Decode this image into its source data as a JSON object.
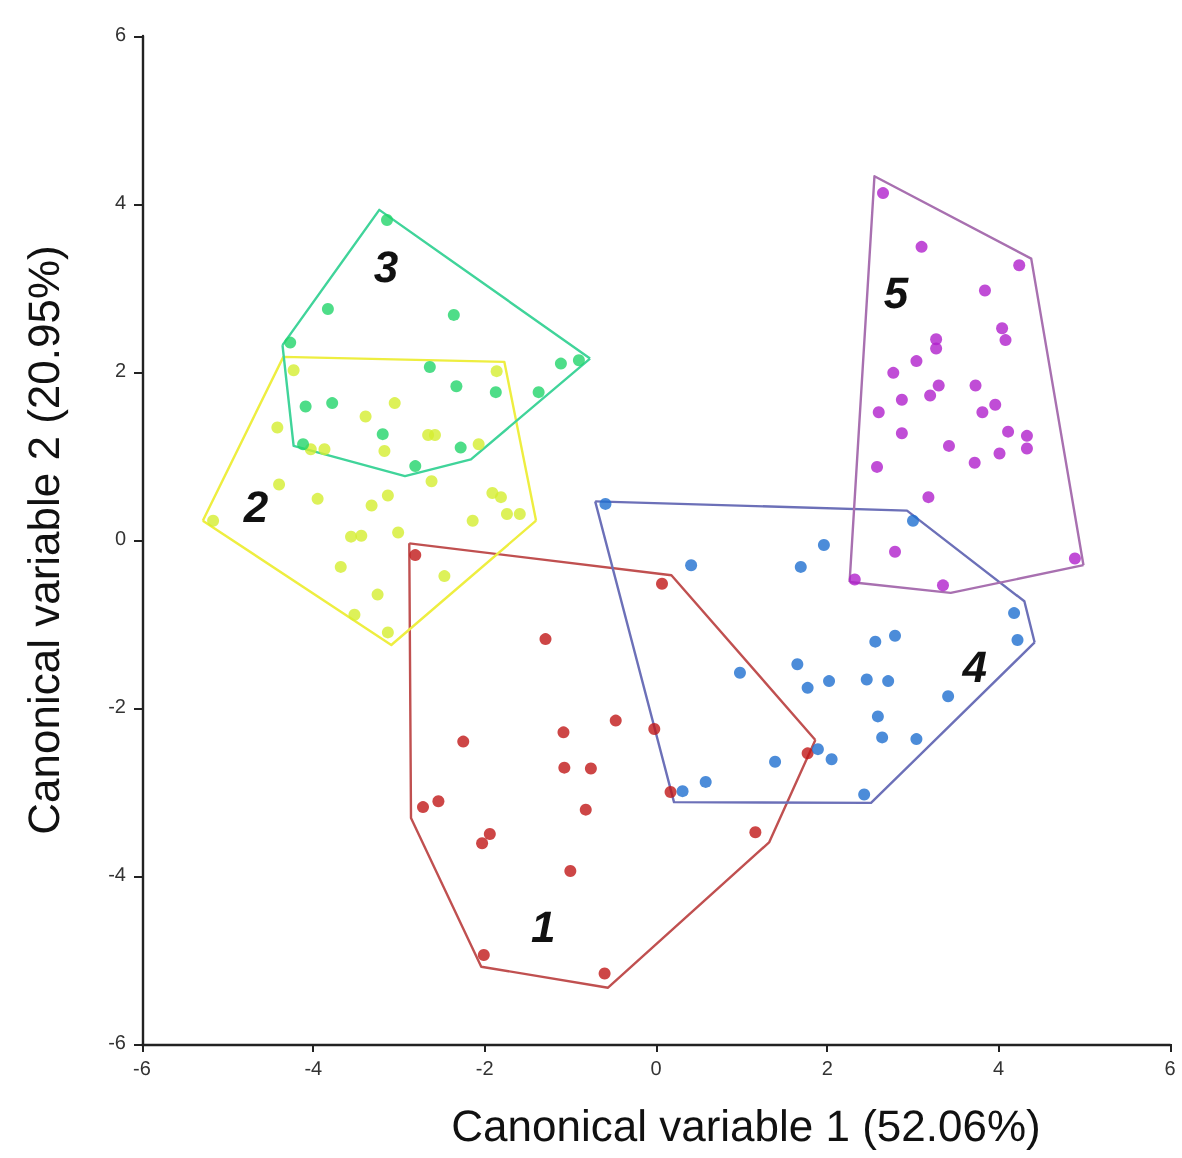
{
  "chart_data": {
    "type": "scatter",
    "xlabel": "Canonical variable 1 (52.06%)",
    "ylabel": "Canonical variable 2 (20.95%)",
    "xlim": [
      -6,
      6
    ],
    "ylim": [
      -6,
      6
    ],
    "xticks": [
      -6,
      -4,
      -2,
      0,
      2,
      4,
      6
    ],
    "yticks": [
      -6,
      -4,
      -2,
      0,
      2,
      4,
      6
    ],
    "grid": false,
    "marker": "circle",
    "series": [
      {
        "color": "#c01818",
        "x": [
          -2.81,
          0.07,
          -1.29,
          -0.47,
          -0.02,
          -1.08,
          -2.25,
          -1.07,
          -0.76,
          1.77,
          0.17,
          -0.82,
          -2.54,
          -2.72,
          -1.94,
          -2.03,
          1.16,
          -1.0,
          -2.01,
          -0.6
        ],
        "values": [
          -0.18,
          -0.52,
          -1.18,
          -2.15,
          -2.25,
          -2.29,
          -2.4,
          -2.71,
          -2.72,
          -2.54,
          -3.0,
          -3.21,
          -3.11,
          -3.18,
          -3.5,
          -3.61,
          -3.48,
          -3.94,
          -4.94,
          -5.16
        ]
      },
      {
        "color": "#d4ee30",
        "x": [
          -4.23,
          -4.42,
          -4.03,
          -3.87,
          -3.39,
          -3.05,
          -2.66,
          -2.58,
          -3.17,
          -2.07,
          -1.86,
          -4.4,
          -3.95,
          -3.32,
          -3.13,
          -2.62,
          -1.91,
          -1.81,
          -1.74,
          -1.59,
          -2.14,
          -3.01,
          -3.56,
          -3.44,
          -3.68,
          -2.47,
          -3.25,
          -3.52,
          -3.13,
          -5.17
        ],
        "values": [
          2.02,
          1.34,
          1.08,
          1.08,
          1.47,
          1.63,
          1.25,
          1.25,
          1.06,
          1.14,
          2.01,
          0.66,
          0.49,
          0.41,
          0.53,
          0.7,
          0.56,
          0.51,
          0.31,
          0.31,
          0.23,
          0.09,
          0.04,
          0.05,
          -0.32,
          -0.43,
          -0.65,
          -0.89,
          -1.1,
          0.23
        ]
      },
      {
        "color": "#22d46a",
        "x": [
          -3.14,
          -3.83,
          -2.36,
          -4.27,
          -2.64,
          -2.33,
          -1.87,
          -1.37,
          -1.11,
          -0.9,
          -4.09,
          -3.78,
          -3.19,
          -4.12,
          -2.28,
          -2.81
        ],
        "values": [
          3.81,
          2.75,
          2.68,
          2.35,
          2.06,
          1.83,
          1.76,
          1.76,
          2.1,
          2.14,
          1.59,
          1.63,
          1.26,
          1.14,
          1.1,
          0.88
        ]
      },
      {
        "color": "#1f6fd0",
        "x": [
          -0.59,
          3.0,
          1.96,
          1.69,
          0.41,
          4.18,
          4.22,
          2.56,
          2.79,
          1.65,
          0.98,
          1.77,
          2.02,
          2.46,
          2.71,
          3.41,
          2.59,
          2.64,
          3.04,
          1.89,
          2.05,
          1.39,
          0.58,
          0.31,
          2.43
        ],
        "values": [
          0.43,
          0.23,
          -0.06,
          -0.32,
          -0.3,
          -0.87,
          -1.19,
          -1.21,
          -1.14,
          -1.48,
          -1.58,
          -1.76,
          -1.68,
          -1.66,
          -1.68,
          -1.86,
          -2.1,
          -2.35,
          -2.37,
          -2.49,
          -2.61,
          -2.64,
          -2.88,
          -2.99,
          -3.03
        ]
      },
      {
        "type": "line",
        "marker": "none",
        "color": "#c05050",
        "x": [
          -2.88,
          0.18,
          1.86
        ],
        "values": [
          -0.04,
          -0.42,
          -2.38
        ]
      },
      {
        "type": "line",
        "marker": "none",
        "color": "#c05050",
        "x": [
          -2.88,
          -2.86,
          -2.04,
          -0.56,
          1.32,
          1.86
        ],
        "values": [
          -0.04,
          -3.31,
          -5.08,
          -5.33,
          -3.6,
          -2.38
        ]
      },
      {
        "type": "line",
        "marker": "none",
        "color": "#eeee40",
        "x": [
          -5.29,
          -4.35,
          -1.77,
          -1.4
        ],
        "values": [
          0.23,
          2.18,
          2.12,
          0.23
        ]
      },
      {
        "type": "line",
        "marker": "none",
        "color": "#eeee40",
        "x": [
          -5.29,
          -3.09,
          -1.4
        ],
        "values": [
          0.23,
          -1.25,
          0.23
        ]
      },
      {
        "type": "line",
        "marker": "none",
        "color": "#40d49a",
        "x": [
          -4.36,
          -3.23,
          -0.77
        ],
        "values": [
          2.32,
          3.93,
          2.16
        ]
      },
      {
        "type": "line",
        "marker": "none",
        "color": "#40d49a",
        "x": [
          -4.36,
          -4.23,
          -2.93,
          -2.16,
          -0.77
        ],
        "values": [
          2.32,
          1.12,
          0.76,
          0.96,
          2.16
        ]
      },
      {
        "type": "line",
        "marker": "none",
        "color": "#6c70b8",
        "x": [
          -0.71,
          2.93,
          4.3,
          4.42
        ],
        "values": [
          0.46,
          0.35,
          -0.73,
          -1.22
        ]
      },
      {
        "type": "line",
        "marker": "none",
        "color": "#6c70b8",
        "x": [
          -0.71,
          0.21,
          2.51,
          4.42
        ],
        "values": [
          0.46,
          -3.12,
          -3.13,
          -1.22
        ]
      },
      {
        "type": "line",
        "marker": "none",
        "color": "#a870b0",
        "x": [
          2.26,
          2.55,
          4.38,
          4.99
        ],
        "values": [
          -0.5,
          4.33,
          3.35,
          -0.3
        ]
      },
      {
        "type": "line",
        "marker": "none",
        "color": "#a870b0",
        "x": [
          2.26,
          3.44,
          4.99
        ],
        "values": [
          -0.5,
          -0.63,
          -0.3
        ]
      },
      {
        "color": "#b020cc",
        "x": [
          2.65,
          3.1,
          4.24,
          3.84,
          4.04,
          4.08,
          3.27,
          3.27,
          3.04,
          2.77,
          3.3,
          3.73,
          3.2,
          2.87,
          3.96,
          3.81,
          2.6,
          4.11,
          4.33,
          2.87,
          3.42,
          4.33,
          4.01,
          3.72,
          2.58,
          3.18,
          2.79,
          2.32,
          3.35,
          4.89
        ],
        "values": [
          4.13,
          3.49,
          3.27,
          2.97,
          2.52,
          2.38,
          2.39,
          2.28,
          2.13,
          1.99,
          1.84,
          1.84,
          1.72,
          1.67,
          1.61,
          1.52,
          1.52,
          1.29,
          1.24,
          1.27,
          1.12,
          1.09,
          1.03,
          0.92,
          0.87,
          0.51,
          -0.14,
          -0.47,
          -0.54,
          -0.22
        ]
      }
    ],
    "annotations": [
      "1",
      "2",
      "3",
      "4",
      "5"
    ]
  }
}
